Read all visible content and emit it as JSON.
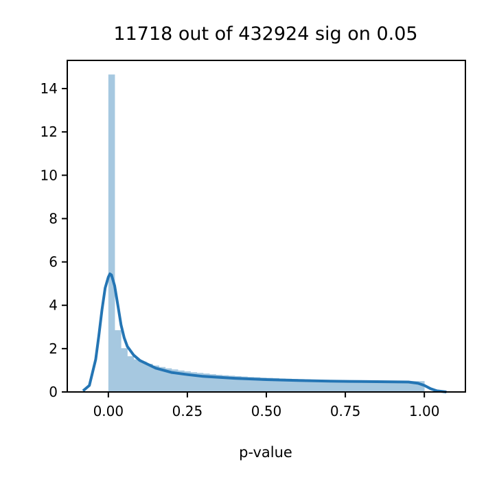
{
  "chart_data": {
    "type": "bar",
    "title": "11718 out of 432924 sig on 0.05",
    "xlabel": "p-value",
    "ylabel": "",
    "xlim": [
      -0.13,
      1.13
    ],
    "ylim": [
      0,
      15.3
    ],
    "x_ticks": [
      "0.00",
      "0.25",
      "0.50",
      "0.75",
      "1.00"
    ],
    "x_tick_values": [
      0,
      0.25,
      0.5,
      0.75,
      1.0
    ],
    "y_ticks": [
      "0",
      "2",
      "4",
      "6",
      "8",
      "10",
      "12",
      "14"
    ],
    "y_tick_values": [
      0,
      2,
      4,
      6,
      8,
      10,
      12,
      14
    ],
    "grid": false,
    "series": [
      {
        "kind": "histogram",
        "color": "#a6c8e0",
        "bin_width": 0.02,
        "bin_start": 0.0,
        "values": [
          14.65,
          2.85,
          2.02,
          1.65,
          1.5,
          1.4,
          1.3,
          1.22,
          1.15,
          1.09,
          1.04,
          0.99,
          0.95,
          0.91,
          0.88,
          0.85,
          0.82,
          0.79,
          0.77,
          0.75,
          0.73,
          0.71,
          0.69,
          0.68,
          0.66,
          0.65,
          0.64,
          0.62,
          0.61,
          0.6,
          0.59,
          0.58,
          0.57,
          0.57,
          0.56,
          0.55,
          0.54,
          0.54,
          0.53,
          0.53,
          0.52,
          0.52,
          0.51,
          0.51,
          0.5,
          0.5,
          0.5,
          0.49,
          0.5,
          0.5
        ]
      },
      {
        "kind": "kde",
        "color": "#2475b4",
        "x": [
          -0.08,
          -0.06,
          -0.04,
          -0.03,
          -0.02,
          -0.01,
          0.0,
          0.005,
          0.01,
          0.02,
          0.03,
          0.04,
          0.05,
          0.06,
          0.08,
          0.1,
          0.15,
          0.2,
          0.25,
          0.3,
          0.4,
          0.5,
          0.6,
          0.7,
          0.8,
          0.9,
          0.95,
          0.98,
          1.0,
          1.02,
          1.04,
          1.07
        ],
        "y": [
          0.05,
          0.3,
          1.5,
          2.6,
          3.8,
          4.8,
          5.3,
          5.45,
          5.4,
          4.9,
          4.0,
          3.1,
          2.5,
          2.1,
          1.7,
          1.45,
          1.1,
          0.9,
          0.8,
          0.72,
          0.63,
          0.57,
          0.53,
          0.5,
          0.48,
          0.47,
          0.46,
          0.4,
          0.3,
          0.15,
          0.05,
          0.0
        ]
      }
    ]
  }
}
